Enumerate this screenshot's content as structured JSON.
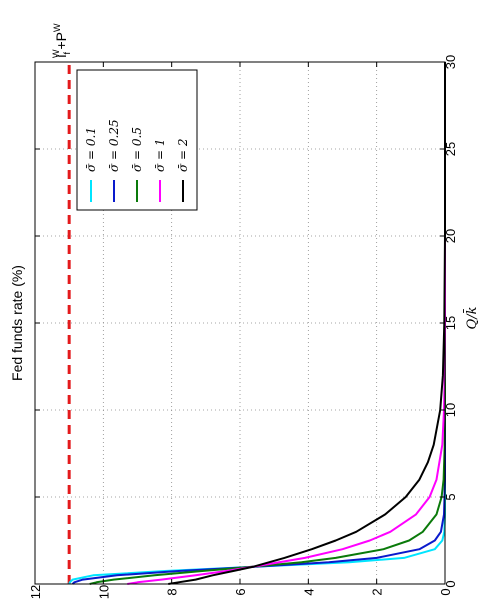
{
  "chart_data": {
    "type": "line",
    "orientation": "rotated-90-ccw",
    "title": "",
    "xlabel": "Q/k̄",
    "ylabel": "Fed funds rate (%)",
    "xlim": [
      0,
      30
    ],
    "ylim": [
      0,
      12
    ],
    "x_ticks": [
      "0",
      "5",
      "10",
      "15",
      "20",
      "25",
      "30"
    ],
    "y_ticks": [
      "0",
      "2",
      "4",
      "6",
      "8",
      "10",
      "12"
    ],
    "grid": true,
    "legend_position": "top-right",
    "reference_line": {
      "label": "i_f^W+P^W",
      "label_main": "i",
      "label_sub": "f",
      "label_sup": "W",
      "label_rest": "+P",
      "label_rest_sup": "W",
      "value": 11,
      "color": "#e31a1c",
      "style": "dashed"
    },
    "series": [
      {
        "name": "σ̄ = 0.1",
        "color": "#00e5ff",
        "x": [
          0,
          0.1,
          0.25,
          0.5,
          0.75,
          1.0,
          1.25,
          1.5,
          2.0,
          2.5,
          3,
          4,
          6,
          10,
          15,
          20,
          30
        ],
        "y": [
          11.0,
          10.98,
          10.9,
          10.3,
          8.2,
          5.5,
          2.8,
          1.2,
          0.3,
          0.08,
          0.02,
          0.0,
          0.0,
          0.0,
          0.0,
          0.0,
          0.0
        ]
      },
      {
        "name": "σ̄ = 0.25",
        "color": "#0a1acc",
        "x": [
          0,
          0.1,
          0.25,
          0.5,
          0.75,
          1.0,
          1.25,
          1.5,
          2.0,
          2.5,
          3,
          4,
          6,
          10,
          15,
          20,
          30
        ],
        "y": [
          10.9,
          10.85,
          10.6,
          9.6,
          7.8,
          5.5,
          3.4,
          2.0,
          0.75,
          0.3,
          0.12,
          0.03,
          0.0,
          0.0,
          0.0,
          0.0,
          0.0
        ]
      },
      {
        "name": "σ̄ = 0.5",
        "color": "#0a7a0a",
        "x": [
          0,
          0.1,
          0.25,
          0.5,
          0.75,
          1.0,
          1.25,
          1.5,
          2.0,
          2.5,
          3,
          4,
          5,
          6,
          8,
          10,
          15,
          20,
          30
        ],
        "y": [
          10.4,
          10.2,
          9.7,
          8.5,
          7.1,
          5.6,
          4.2,
          3.2,
          1.8,
          1.05,
          0.65,
          0.25,
          0.1,
          0.04,
          0.01,
          0.0,
          0.0,
          0.0,
          0.0
        ]
      },
      {
        "name": "σ̄ = 1",
        "color": "#ff00ff",
        "x": [
          0,
          0.1,
          0.25,
          0.5,
          0.75,
          1.0,
          1.5,
          2.0,
          2.5,
          3,
          4,
          5,
          6,
          8,
          10,
          12,
          15,
          20,
          30
        ],
        "y": [
          9.3,
          9.0,
          8.3,
          7.3,
          6.4,
          5.6,
          4.1,
          3.0,
          2.2,
          1.6,
          0.85,
          0.45,
          0.25,
          0.08,
          0.03,
          0.01,
          0.0,
          0.0,
          0.0
        ]
      },
      {
        "name": "σ̄ = 2",
        "color": "#000000",
        "x": [
          0,
          0.1,
          0.25,
          0.5,
          0.75,
          1.0,
          1.5,
          2.0,
          2.5,
          3,
          4,
          5,
          6,
          7,
          8,
          10,
          12,
          15,
          20,
          30
        ],
        "y": [
          8.1,
          7.8,
          7.3,
          6.8,
          6.2,
          5.6,
          4.7,
          3.9,
          3.2,
          2.6,
          1.75,
          1.15,
          0.75,
          0.5,
          0.33,
          0.14,
          0.06,
          0.02,
          0.0,
          0.0
        ]
      }
    ]
  }
}
